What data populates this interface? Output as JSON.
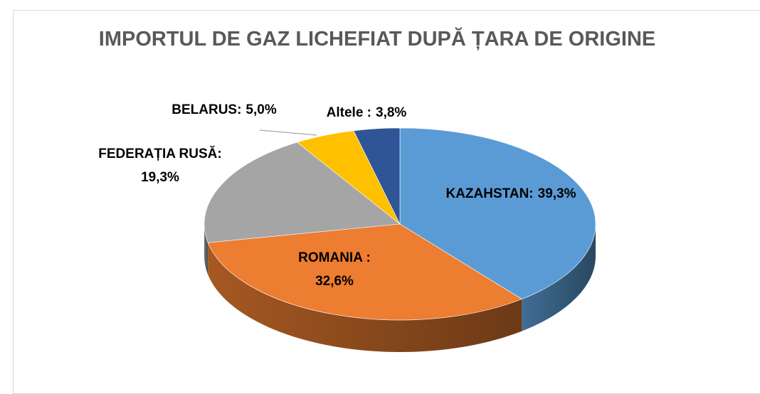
{
  "chart_data": {
    "type": "pie3d",
    "title": "IMPORTUL DE GAZ LICHEFIAT DUPĂ ȚARA DE ORIGINE",
    "categories": [
      "KAZAHSTAN:",
      "ROMANIA :",
      "FEDERAȚIA RUSĂ:",
      "BELARUS:",
      "Altele :"
    ],
    "values": [
      39.3,
      32.6,
      19.3,
      5.0,
      3.8
    ],
    "value_labels": [
      "39,3%",
      "32,6%",
      "19,3%",
      "5,0%",
      "3,8%"
    ],
    "colors": [
      "#5b9bd5",
      "#ed7d31",
      "#a5a5a5",
      "#ffc000",
      "#2f5597"
    ]
  }
}
